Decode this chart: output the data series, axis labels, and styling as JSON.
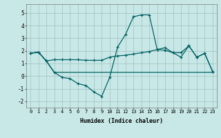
{
  "xlabel": "Humidex (Indice chaleur)",
  "background_color": "#c8e8e8",
  "grid_color": "#a0c0c0",
  "line_color": "#006060",
  "xlim": [
    -0.5,
    23.5
  ],
  "ylim": [
    -2.5,
    5.7
  ],
  "xticks": [
    0,
    1,
    2,
    3,
    4,
    5,
    6,
    7,
    8,
    9,
    10,
    11,
    12,
    13,
    14,
    15,
    16,
    17,
    18,
    19,
    20,
    21,
    22,
    23
  ],
  "yticks": [
    -2,
    -1,
    0,
    1,
    2,
    3,
    4,
    5
  ],
  "s1_x": [
    0,
    1,
    2,
    3,
    4,
    5,
    6,
    7,
    8,
    9,
    10,
    11,
    12,
    13,
    14,
    15,
    16,
    17,
    18,
    19,
    20,
    21,
    22,
    23
  ],
  "s1_y": [
    1.8,
    1.9,
    1.2,
    1.3,
    1.3,
    1.3,
    1.3,
    1.25,
    1.25,
    1.25,
    1.5,
    1.6,
    1.65,
    1.75,
    1.85,
    1.95,
    2.1,
    2.05,
    1.85,
    1.85,
    2.4,
    1.5,
    1.8,
    0.35
  ],
  "s2_x": [
    0,
    1,
    2,
    3,
    4,
    5,
    6,
    7,
    8,
    9,
    10,
    11,
    12,
    13,
    14,
    15,
    16,
    17,
    18,
    19,
    20,
    21,
    22,
    23
  ],
  "s2_y": [
    1.8,
    1.9,
    1.2,
    0.3,
    -0.1,
    -0.2,
    -0.6,
    -0.75,
    -1.25,
    -1.6,
    -0.1,
    2.3,
    3.3,
    4.7,
    4.85,
    4.85,
    2.1,
    2.25,
    1.85,
    1.5,
    2.4,
    1.5,
    1.8,
    0.35
  ],
  "s3_x": [
    0,
    1,
    2,
    3,
    4,
    5,
    6,
    7,
    8,
    9,
    10,
    11,
    12,
    13,
    14,
    15,
    16,
    17,
    18,
    19,
    20,
    21,
    22,
    23
  ],
  "s3_y": [
    1.8,
    1.9,
    1.2,
    0.3,
    0.3,
    0.3,
    0.3,
    0.3,
    0.3,
    0.3,
    0.3,
    0.3,
    0.3,
    0.3,
    0.3,
    0.3,
    0.3,
    0.3,
    0.3,
    0.3,
    0.3,
    0.3,
    0.3,
    0.3
  ]
}
